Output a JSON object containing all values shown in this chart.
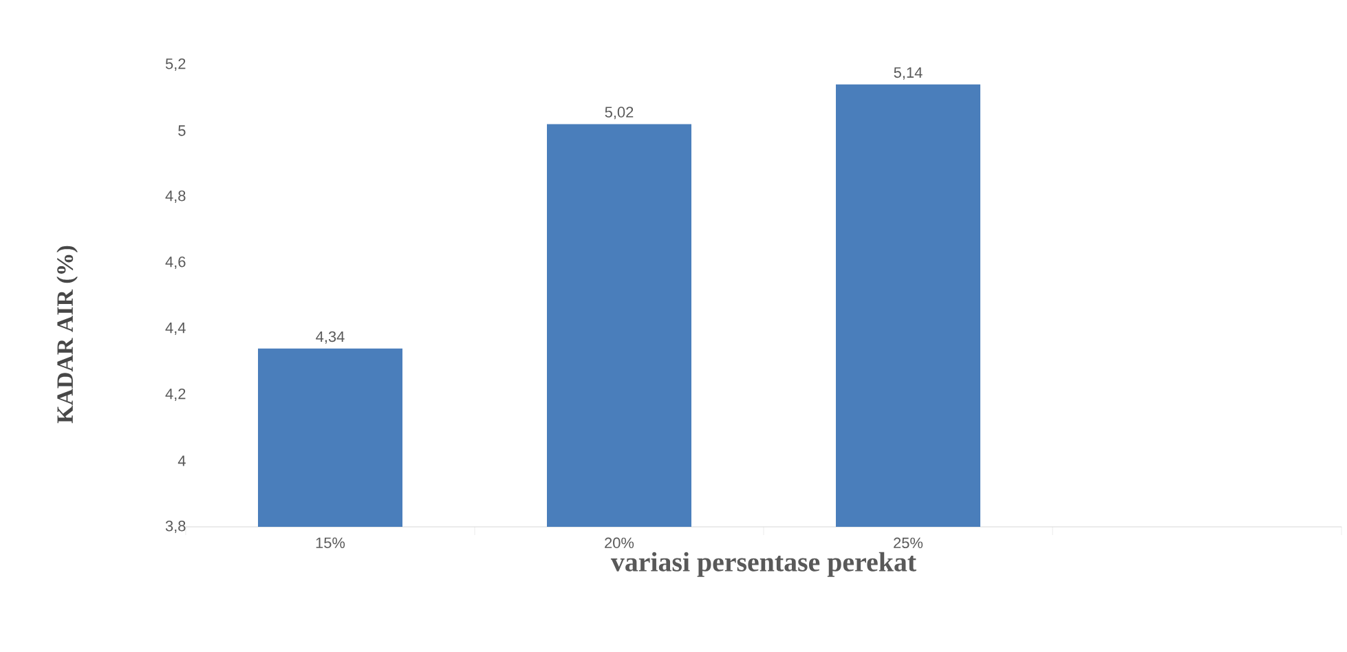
{
  "chart_data": {
    "type": "bar",
    "xlabel": "variasi persentase perekat",
    "ylabel": "KADAR AIR (%)",
    "categories": [
      "15%",
      "20%",
      "25%",
      null
    ],
    "values": [
      4.34,
      5.02,
      5.14,
      null
    ],
    "value_labels": [
      "4,34",
      "5,02",
      "5,14",
      null
    ],
    "color": "#4a7ebb",
    "ylim": [
      3.8,
      5.2
    ],
    "yticks": [
      {
        "value": 3.8,
        "label": "3,8"
      },
      4,
      {
        "value": 4.2,
        "label": "4,2"
      },
      {
        "value": 4.4,
        "label": "4,4"
      },
      {
        "value": 4.6,
        "label": "4,6"
      },
      {
        "value": 4.8,
        "label": "4,8"
      },
      5,
      {
        "value": 5.2,
        "label": "5,2"
      }
    ]
  }
}
